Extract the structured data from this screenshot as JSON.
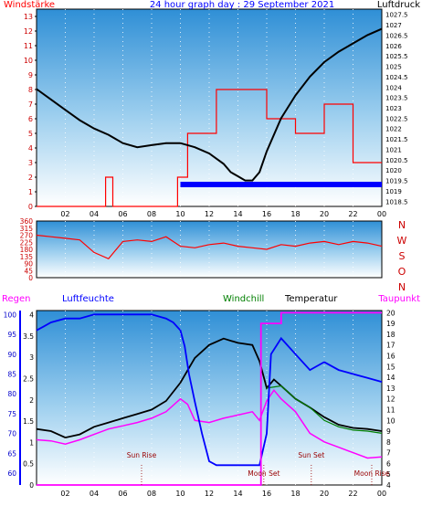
{
  "colors": {
    "frame": "#000000",
    "bg": "#ffffff",
    "plot_top": "#2f8fd6",
    "plot_bottom": "#ffffff",
    "red": "#ff0000",
    "blue": "#0000ff",
    "black": "#000000",
    "green": "#007f00",
    "magenta": "#ff00ff",
    "tick_red": "#cc0000",
    "tick_blue": "#0000cc",
    "darkred": "#990000"
  },
  "chart_data": [
    {
      "type": "line",
      "title": "24 hour graph day : 29 September 2021",
      "left_label": "Windstärke",
      "right_label": "Luftdruck",
      "x_ticks": [
        "02",
        "04",
        "06",
        "08",
        "10",
        "12",
        "14",
        "16",
        "18",
        "20",
        "22",
        "00"
      ],
      "y_left_ticks": [
        "0",
        "1",
        "2",
        "3",
        "4",
        "5",
        "6",
        "7",
        "8",
        "9",
        "10",
        "11",
        "12",
        "13"
      ],
      "y_left_range": [
        0,
        13.5
      ],
      "y_right_ticks": [
        "1018.5",
        "1019",
        "1019.5",
        "1020",
        "1020.5",
        "1021",
        "1021.5",
        "1022",
        "1022.5",
        "1023",
        "1023.5",
        "1024",
        "1024.5",
        "1025",
        "1025.5",
        "1026",
        "1026.5",
        "1027",
        "1027.5"
      ],
      "y_right_range": [
        1018.25,
        1027.75
      ],
      "series": [
        {
          "color": "red",
          "x": [
            0,
            4.8,
            4.8,
            5.3,
            5.3,
            9.8,
            9.8,
            10.5,
            10.5,
            12.5,
            12.5,
            16.0,
            16.0,
            18.0,
            18.0,
            20.0,
            20.0,
            22.0,
            22.0,
            24.0
          ],
          "y": [
            0,
            0,
            2,
            2,
            0,
            0,
            2,
            2,
            5,
            5,
            8,
            8,
            6,
            6,
            5,
            5,
            7,
            7,
            3,
            3
          ]
        },
        {
          "color": "blue",
          "x": [
            10.0,
            24.0
          ],
          "y": [
            1.5,
            1.5
          ]
        },
        {
          "color": "black",
          "x": [
            0,
            1,
            2,
            3,
            4,
            5,
            6,
            7,
            8,
            9,
            10,
            11,
            12,
            13,
            13.5,
            14,
            14.5,
            15,
            15.5,
            16,
            17,
            18,
            19,
            20,
            21,
            22,
            23,
            24
          ],
          "y": [
            1023.9,
            1023.4,
            1022.9,
            1022.4,
            1022.0,
            1021.7,
            1021.3,
            1021.1,
            1021.2,
            1021.3,
            1021.3,
            1021.1,
            1020.8,
            1020.3,
            1019.9,
            1019.7,
            1019.5,
            1019.5,
            1019.9,
            1020.9,
            1022.5,
            1023.6,
            1024.5,
            1025.2,
            1025.7,
            1026.1,
            1026.5,
            1026.8
          ]
        }
      ]
    },
    {
      "type": "line",
      "y_left_ticks": [
        "0",
        "45",
        "90",
        "135",
        "180",
        "225",
        "270",
        "315",
        "360"
      ],
      "y_left_range": [
        0,
        360
      ],
      "compass_labels": [
        "N",
        "W",
        "S",
        "O",
        "N"
      ],
      "series": [
        {
          "color": "red",
          "x": [
            0,
            1,
            2,
            3,
            4,
            5,
            6,
            7,
            8,
            9,
            10,
            11,
            12,
            13,
            14,
            15,
            16,
            17,
            18,
            19,
            20,
            21,
            22,
            23,
            24
          ],
          "y": [
            270,
            260,
            250,
            240,
            160,
            120,
            230,
            240,
            230,
            260,
            200,
            190,
            210,
            220,
            200,
            190,
            180,
            210,
            200,
            220,
            230,
            210,
            230,
            220,
            200
          ]
        }
      ]
    },
    {
      "type": "line",
      "left_label": "Regen",
      "left_label2": "Luftfeuchte",
      "mid_label": "Windchill",
      "mid_label2": "Temperatur",
      "right_label": "Taupunkt",
      "x_ticks": [
        "02",
        "04",
        "06",
        "08",
        "10",
        "12",
        "14",
        "16",
        "18",
        "20",
        "22",
        "00"
      ],
      "y_rain_ticks": [
        "0",
        "0.5",
        "1",
        "1.5",
        "2",
        "2.5",
        "3",
        "3.5",
        "4"
      ],
      "y_rain_range": [
        0,
        4.1
      ],
      "y_hum_ticks": [
        "60",
        "65",
        "70",
        "75",
        "80",
        "85",
        "90",
        "95",
        "100"
      ],
      "y_hum_range": [
        57,
        101
      ],
      "y_temp_ticks": [
        "4",
        "5",
        "6",
        "7",
        "8",
        "9",
        "10",
        "11",
        "12",
        "13",
        "14",
        "15",
        "16",
        "17",
        "18",
        "19",
        "20"
      ],
      "y_temp_range": [
        4,
        20.2
      ],
      "annotations": [
        {
          "text": "Sun Rise",
          "x": 7.3
        },
        {
          "text": "Moon Set",
          "x": 15.8
        },
        {
          "text": "Sun Set",
          "x": 19.1
        },
        {
          "text": "Moon Rise",
          "x": 23.3
        }
      ],
      "series": [
        {
          "color": "magenta",
          "x": [
            0,
            1,
            2,
            3,
            4,
            5,
            6,
            7,
            8,
            9,
            10,
            10.5,
            11,
            12,
            13,
            14,
            15,
            15.5,
            16,
            16.5,
            17,
            18,
            19,
            20,
            21,
            22,
            23,
            24
          ],
          "y": [
            8.2,
            8.1,
            7.8,
            8.2,
            8.7,
            9.2,
            9.5,
            9.8,
            10.2,
            10.8,
            12.0,
            11.5,
            10.0,
            9.8,
            10.2,
            10.5,
            10.8,
            10.0,
            11.8,
            12.8,
            12.0,
            10.8,
            8.8,
            8.0,
            7.5,
            7.0,
            6.5,
            6.6
          ]
        },
        {
          "color": "black",
          "x": [
            0,
            1,
            2,
            3,
            4,
            5,
            6,
            7,
            8,
            9,
            10,
            11,
            12,
            13,
            14,
            15,
            15.5,
            16,
            16.5,
            17,
            18,
            19,
            20,
            21,
            22,
            23,
            24
          ],
          "y": [
            9.2,
            9.0,
            8.4,
            8.7,
            9.4,
            9.8,
            10.2,
            10.6,
            11.0,
            11.8,
            13.5,
            15.8,
            17.0,
            17.6,
            17.2,
            17.0,
            15.5,
            13.0,
            13.8,
            13.2,
            12.0,
            11.2,
            10.3,
            9.6,
            9.3,
            9.2,
            9.0
          ]
        },
        {
          "color": "green",
          "x": [
            16,
            17,
            18,
            19,
            20,
            21,
            22,
            23,
            24
          ],
          "y": [
            13.0,
            13.2,
            12.0,
            11.2,
            10.0,
            9.4,
            9.1,
            9.0,
            8.8
          ]
        },
        {
          "color": "blue",
          "x": [
            0,
            0.5,
            1,
            2,
            3,
            4,
            5,
            6,
            7,
            8,
            9,
            9.5,
            10,
            10.3,
            10.6,
            11,
            11.5,
            12,
            12.5,
            13,
            14,
            15,
            15.5,
            16,
            16.3,
            17,
            18,
            19,
            20,
            21,
            22,
            23,
            24
          ],
          "y": [
            96,
            97,
            98,
            99,
            99,
            100,
            100,
            100,
            100,
            100,
            99,
            98,
            96,
            92,
            85,
            78,
            70,
            63,
            62,
            62,
            62,
            62,
            62,
            70,
            90,
            94,
            90,
            86,
            88,
            86,
            85,
            84,
            83
          ]
        },
        {
          "color": "magenta",
          "x": [
            0,
            15.6,
            15.6,
            17,
            17,
            24
          ],
          "y": [
            4,
            4,
            19.0,
            19.0,
            20.0,
            20.0
          ]
        }
      ]
    }
  ]
}
